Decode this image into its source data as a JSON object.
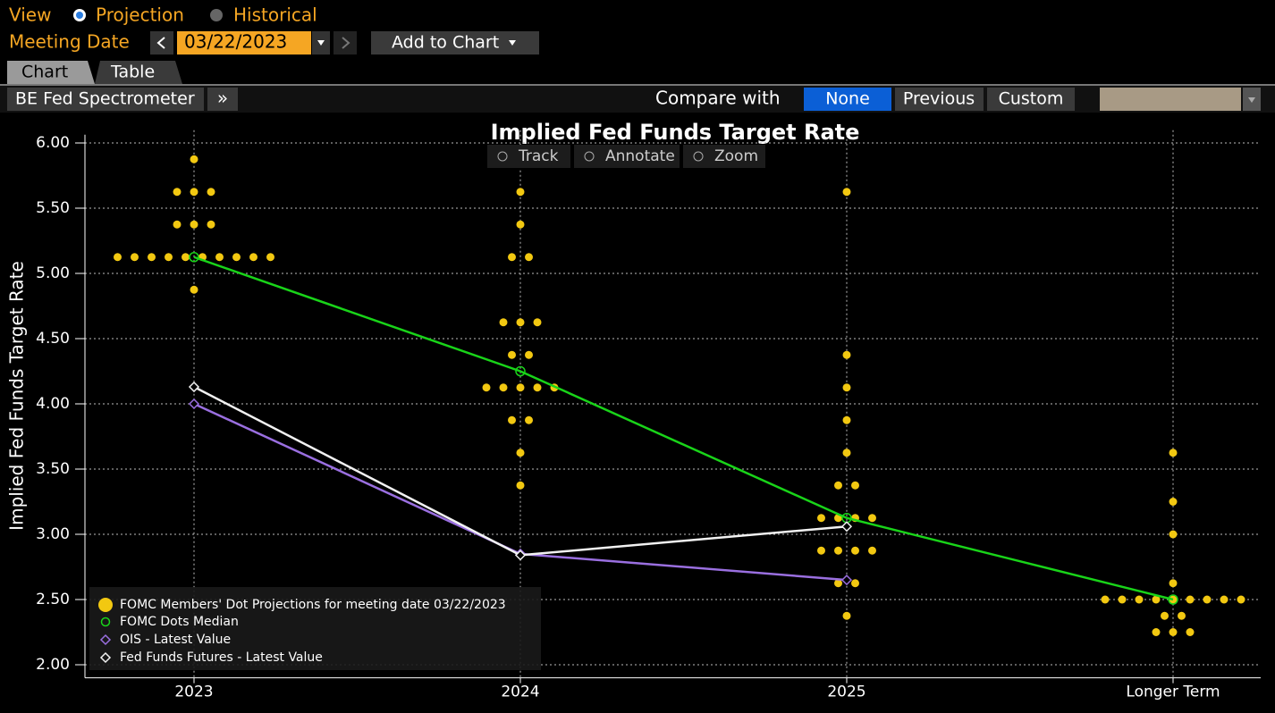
{
  "toolbar": {
    "view_label": "View",
    "view_options": [
      "Projection",
      "Historical"
    ],
    "meeting_date_label": "Meeting Date",
    "meeting_date": "03/22/2023",
    "add_to_chart": "Add to Chart"
  },
  "tabs": [
    "Chart",
    "Table"
  ],
  "subbar": {
    "function": "BE Fed Spectrometer",
    "more": "»",
    "compare_label": "Compare with",
    "compare_options": [
      "None",
      "Previous",
      "Custom"
    ]
  },
  "chart_data": {
    "type": "scatter",
    "title": "Implied Fed Funds Target Rate",
    "ylabel": "Implied Fed Funds Target Rate",
    "tools": [
      "Track",
      "Annotate",
      "Zoom"
    ],
    "categories": [
      "2023",
      "2024",
      "2025",
      "Longer Term"
    ],
    "ylim": [
      1.9,
      6.2
    ],
    "yticks": [
      {
        "value": 2,
        "label": "2.00"
      },
      {
        "value": 2.5,
        "label": "2.50"
      },
      {
        "value": 3,
        "label": "3.00"
      },
      {
        "value": 3.5,
        "label": "3.50"
      },
      {
        "value": 4,
        "label": "4.00"
      },
      {
        "value": 4.5,
        "label": "4.50"
      },
      {
        "value": 5,
        "label": "5.00"
      },
      {
        "value": 5.5,
        "label": "5.50"
      },
      {
        "value": 6,
        "label": "6.00"
      }
    ],
    "grid": true,
    "dots": {
      "name": "FOMC Members' Dot Projections for meeting date 03/22/2023",
      "color": "#f2c811",
      "x": [
        "2023",
        "2023",
        "2023",
        "2023",
        "2023",
        "2023",
        "2023",
        "2023",
        "2023",
        "2023",
        "2023",
        "2023",
        "2023",
        "2023",
        "2023",
        "2023",
        "2023",
        "2023",
        "2024",
        "2024",
        "2024",
        "2024",
        "2024",
        "2024",
        "2024",
        "2024",
        "2024",
        "2024",
        "2024",
        "2024",
        "2024",
        "2024",
        "2024",
        "2024",
        "2024",
        "2024",
        "2025",
        "2025",
        "2025",
        "2025",
        "2025",
        "2025",
        "2025",
        "2025",
        "2025",
        "2025",
        "2025",
        "2025",
        "2025",
        "2025",
        "2025",
        "2025",
        "2025",
        "2025",
        "Longer Term",
        "Longer Term",
        "Longer Term",
        "Longer Term",
        "Longer Term",
        "Longer Term",
        "Longer Term",
        "Longer Term",
        "Longer Term",
        "Longer Term",
        "Longer Term",
        "Longer Term",
        "Longer Term",
        "Longer Term",
        "Longer Term",
        "Longer Term",
        "Longer Term",
        "Longer Term"
      ],
      "values": [
        5.875,
        5.625,
        5.625,
        5.625,
        5.375,
        5.375,
        5.375,
        5.125,
        5.125,
        5.125,
        5.125,
        5.125,
        5.125,
        5.125,
        5.125,
        5.125,
        5.125,
        4.875,
        5.625,
        5.375,
        5.125,
        5.125,
        4.625,
        4.625,
        4.625,
        4.375,
        4.375,
        4.125,
        4.125,
        4.125,
        4.125,
        4.125,
        3.875,
        3.875,
        3.625,
        3.375,
        5.625,
        4.375,
        4.125,
        3.875,
        3.625,
        3.375,
        3.375,
        3.125,
        3.125,
        3.125,
        3.125,
        2.875,
        2.875,
        2.875,
        2.875,
        2.625,
        2.625,
        2.375,
        3.625,
        3.25,
        3.0,
        2.625,
        2.5,
        2.5,
        2.5,
        2.5,
        2.5,
        2.5,
        2.5,
        2.5,
        2.5,
        2.375,
        2.375,
        2.25,
        2.25,
        2.25
      ]
    },
    "series": [
      {
        "name": "FOMC Dots Median",
        "color": "#19d419",
        "marker": "circle",
        "values": [
          5.125,
          4.25,
          3.125,
          2.5
        ]
      },
      {
        "name": "OIS - Latest Value",
        "color": "#9a6fe0",
        "marker": "diamond",
        "values": [
          4.0,
          2.85,
          2.65,
          null
        ]
      },
      {
        "name": "Fed Funds Futures - Latest Value",
        "color": "#f2f2f2",
        "marker": "diamond",
        "values": [
          4.13,
          2.84,
          3.06,
          null
        ]
      }
    ]
  }
}
